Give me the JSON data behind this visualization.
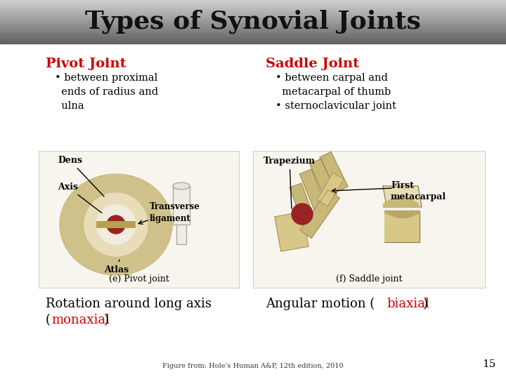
{
  "title": "Types of Synovial Joints",
  "title_fontsize": 26,
  "title_text_color": "#111111",
  "left_heading": "Pivot Joint",
  "left_bullet": "• between proximal\n  ends of radius and\n  ulna",
  "left_caption": "(e) Pivot joint",
  "right_heading": "Saddle Joint",
  "right_bullet": "• between carpal and\n  metacarpal of thumb\n• sternoclavicular joint",
  "right_caption": "(f) Saddle joint",
  "heading_color": "#cc0000",
  "bullet_color": "#000000",
  "motion_red_color": "#cc0000",
  "caption_color": "#000000",
  "footnote": "Figure from: Hole’s Human A&P, 12th edition, 2010",
  "page_number": "15",
  "bg_color": "#ffffff",
  "left_motion_line1_black": "Rotation around long axis",
  "left_motion_line2_open": "(",
  "left_motion_line2_red": "monaxial",
  "left_motion_line2_close": ")",
  "right_motion_black1": "Angular motion (",
  "right_motion_red": "biaxial",
  "right_motion_black2": ")"
}
